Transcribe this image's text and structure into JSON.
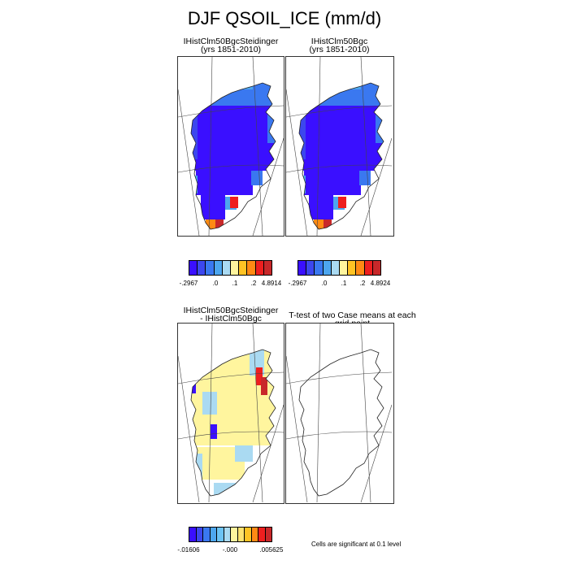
{
  "title": "DJF QSOIL_ICE (mm/d)",
  "panels": {
    "p1": {
      "title": "IHistClm50BgcSteidinger",
      "subtitle": "(yrs 1851-2010)"
    },
    "p2": {
      "title": "IHistClm50Bgc",
      "subtitle": "(yrs 1851-2010)"
    },
    "p3": {
      "title": "IHistClm50BgcSteidinger",
      "subtitle": "- IHistClm50Bgc"
    },
    "p4": {
      "title": "T-test of two Case means at each grid point"
    }
  },
  "colorbars": {
    "cb1": {
      "colors": [
        "#3a0fff",
        "#3c47ee",
        "#3a78f0",
        "#4da6ee",
        "#aadaf2",
        "#fff59e",
        "#ffc324",
        "#ff8a14",
        "#ee1f1f",
        "#c8282a"
      ],
      "labels": [
        "-.2967",
        ".0",
        ".1",
        ".2",
        "4.8914"
      ]
    },
    "cb2": {
      "colors": [
        "#3a0fff",
        "#3c47ee",
        "#3a78f0",
        "#4da6ee",
        "#aadaf2",
        "#fff59e",
        "#ffc324",
        "#ff8a14",
        "#ee1f1f",
        "#c8282a"
      ],
      "labels": [
        "-.2967",
        ".0",
        ".1",
        ".2",
        "4.8924"
      ]
    },
    "cb3": {
      "colors": [
        "#3a0fff",
        "#3c47ee",
        "#3a78f0",
        "#4da6ee",
        "#6cc3f4",
        "#aadaf2",
        "#fff59e",
        "#ffe270",
        "#ffc324",
        "#ff8a14",
        "#ee1f1f",
        "#c8282a"
      ],
      "labels": [
        "-.01606",
        "-.000",
        ".005625"
      ]
    }
  },
  "note": "Cells are significant at 0.1 level",
  "chart_data": [
    {
      "type": "heatmap",
      "title": "IHistClm50BgcSteidinger",
      "subtitle": "(yrs 1851-2010)",
      "region": "Greenland",
      "levels": [
        -0.2967,
        0.0,
        0.1,
        0.2,
        4.8914
      ],
      "dominant_values": "strong negative (about -0.3) over most of the ice sheet; moderately negative on the margins; a few positive cells in the far south"
    },
    {
      "type": "heatmap",
      "title": "IHistClm50Bgc",
      "subtitle": "(yrs 1851-2010)",
      "region": "Greenland",
      "levels": [
        -0.2967,
        0.0,
        0.1,
        0.2,
        4.8924
      ],
      "dominant_values": "strong negative over most of the ice sheet; moderately negative on the margins; positive cells in the far south"
    },
    {
      "type": "heatmap",
      "title": "IHistClm50BgcSteidinger - IHistClm50Bgc",
      "region": "Greenland",
      "levels": [
        -0.01606,
        -0.0,
        0.005625
      ],
      "dominant_values": "near zero (slightly positive) over most of the ice sheet; small negative cells on the margins; positive cells on the northeast coast"
    },
    {
      "type": "heatmap",
      "title": "T-test of two Case means at each grid point",
      "region": "Greenland",
      "significance_level": 0.1,
      "significant_cells": []
    }
  ]
}
